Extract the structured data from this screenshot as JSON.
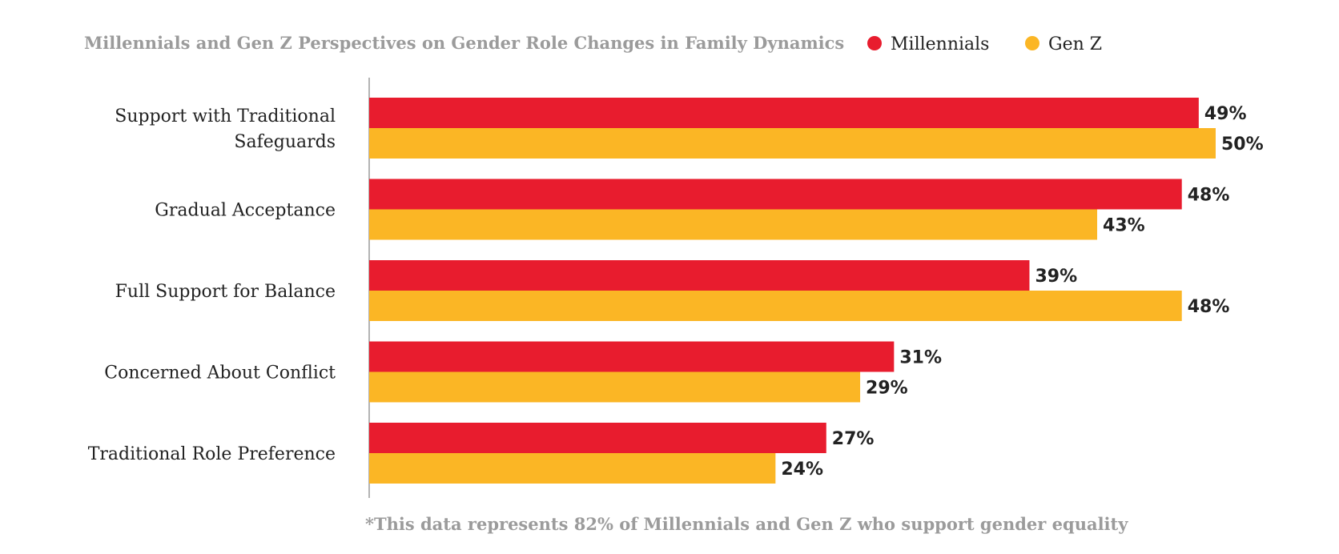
{
  "chart_data": {
    "type": "bar",
    "orientation": "horizontal",
    "title": "Millennials and Gen Z Perspectives on Gender Role Changes in Family Dynamics",
    "footnote": "*This data represents 82% of Millennials and Gen Z who support gender equality",
    "legend_position": "top-right",
    "grid": false,
    "xlim": [
      0,
      50
    ],
    "categories": [
      [
        "Support with Traditional",
        "Safeguards"
      ],
      [
        "Gradual Acceptance"
      ],
      [
        "Full Support for Balance"
      ],
      [
        "Concerned About Conflict"
      ],
      [
        "Traditional Role Preference"
      ]
    ],
    "series": [
      {
        "name": "Millennials",
        "color": "#e81c2e",
        "values": [
          49,
          48,
          39,
          31,
          27
        ],
        "labels": [
          "49%",
          "48%",
          "39%",
          "31%",
          "27%"
        ]
      },
      {
        "name": "Gen Z",
        "color": "#fbb625",
        "values": [
          50,
          43,
          48,
          29,
          24
        ],
        "labels": [
          "50%",
          "43%",
          "48%",
          "29%",
          "24%"
        ]
      }
    ],
    "axis_color": "#9b9b9b"
  }
}
